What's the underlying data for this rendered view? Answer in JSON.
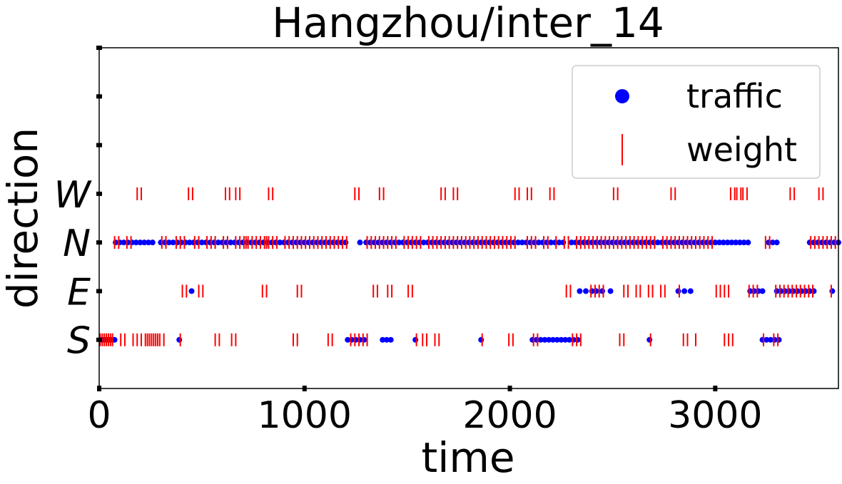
{
  "chart_data": {
    "type": "scatter",
    "title": "Hangzhou/inter_14",
    "xlabel": "time",
    "ylabel": "direction",
    "xlim": [
      0,
      3600
    ],
    "xticks": [
      "0",
      "1000",
      "2000",
      "3000"
    ],
    "xtick_values": [
      0,
      1000,
      2000,
      3000
    ],
    "ylim": [
      -1,
      6
    ],
    "yticks": [
      "S",
      "E",
      "N",
      "W",
      "",
      "",
      ""
    ],
    "ytick_values": [
      0,
      1,
      2,
      3,
      4,
      5,
      6
    ],
    "legend_position": "upper right",
    "colors": {
      "traffic": "#0000ff",
      "weight": "#ff0000"
    },
    "series": [
      {
        "name": "traffic",
        "marker": "dot",
        "points": {
          "S": [
            5,
            15,
            25,
            35,
            45,
            55,
            65,
            75,
            390,
            1210,
            1230,
            1250,
            1270,
            1290,
            1380,
            1400,
            1420,
            1540,
            1860,
            2110,
            2130,
            2150,
            2170,
            2190,
            2210,
            2230,
            2250,
            2270,
            2290,
            2310,
            2330,
            2680,
            3230,
            3250,
            3270,
            3290,
            3310
          ],
          "E": [
            450,
            2340,
            2370,
            2400,
            2420,
            2450,
            2490,
            2820,
            2850,
            2880,
            3170,
            3190,
            3210,
            3230,
            3300,
            3320,
            3340,
            3360,
            3380,
            3400,
            3420,
            3440,
            3460,
            3480,
            3570
          ],
          "N": [
            80,
            100,
            120,
            140,
            160,
            180,
            200,
            220,
            240,
            260,
            300,
            320,
            340,
            360,
            380,
            400,
            420,
            440,
            460,
            480,
            500,
            520,
            540,
            560,
            580,
            600,
            620,
            640,
            660,
            680,
            700,
            720,
            740,
            760,
            780,
            800,
            820,
            840,
            860,
            880,
            900,
            920,
            940,
            960,
            980,
            1000,
            1020,
            1040,
            1060,
            1080,
            1100,
            1120,
            1140,
            1160,
            1180,
            1200,
            1270,
            1300,
            1320,
            1340,
            1360,
            1380,
            1400,
            1420,
            1440,
            1460,
            1480,
            1500,
            1520,
            1540,
            1560,
            1580,
            1600,
            1620,
            1640,
            1660,
            1680,
            1700,
            1720,
            1740,
            1760,
            1780,
            1800,
            1820,
            1840,
            1860,
            1880,
            1900,
            1920,
            1940,
            1960,
            1980,
            2000,
            2020,
            2040,
            2060,
            2080,
            2100,
            2120,
            2140,
            2160,
            2180,
            2200,
            2220,
            2240,
            2260,
            2300,
            2320,
            2340,
            2360,
            2380,
            2400,
            2420,
            2440,
            2460,
            2480,
            2500,
            2520,
            2540,
            2560,
            2580,
            2600,
            2620,
            2640,
            2660,
            2680,
            2700,
            2720,
            2740,
            2760,
            2780,
            2800,
            2820,
            2840,
            2860,
            2880,
            2900,
            2920,
            2940,
            2960,
            2980,
            3000,
            3020,
            3040,
            3060,
            3080,
            3100,
            3120,
            3140,
            3160,
            3260,
            3280,
            3300,
            3460,
            3480,
            3500,
            3520,
            3540,
            3560,
            3580,
            3600
          ]
        }
      },
      {
        "name": "weight",
        "marker": "vline",
        "points": {
          "S": [
            5,
            15,
            25,
            35,
            45,
            55,
            65,
            105,
            125,
            165,
            185,
            205,
            225,
            235,
            245,
            255,
            265,
            275,
            285,
            295,
            315,
            395,
            565,
            585,
            645,
            665,
            945,
            965,
            1115,
            1135,
            1225,
            1245,
            1265,
            1285,
            1305,
            1545,
            1575,
            1595,
            1635,
            1655,
            1865,
            1995,
            2015,
            2115,
            2135,
            2305,
            2325,
            2345,
            2535,
            2555,
            2685,
            2845,
            2865,
            2905,
            3045,
            3065,
            3085,
            3235,
            3285,
            3305
          ],
          "E": [
            405,
            425,
            485,
            505,
            795,
            815,
            965,
            985,
            1335,
            1355,
            1405,
            1425,
            1505,
            1525,
            2275,
            2295,
            2395,
            2415,
            2435,
            2455,
            2555,
            2575,
            2615,
            2635,
            2675,
            2695,
            2735,
            2755,
            2825,
            3005,
            3025,
            3045,
            3065,
            3165,
            3185,
            3205,
            3295,
            3315,
            3335,
            3355,
            3375,
            3395,
            3415,
            3435,
            3455,
            3475,
            3565
          ],
          "N": [
            75,
            95,
            135,
            155,
            305,
            325,
            375,
            395,
            415,
            465,
            485,
            525,
            545,
            565,
            605,
            625,
            665,
            685,
            705,
            715,
            725,
            745,
            765,
            785,
            805,
            815,
            825,
            845,
            865,
            905,
            925,
            945,
            965,
            985,
            1005,
            1025,
            1045,
            1065,
            1085,
            1105,
            1125,
            1145,
            1165,
            1185,
            1205,
            1305,
            1325,
            1345,
            1365,
            1385,
            1405,
            1425,
            1445,
            1485,
            1505,
            1525,
            1545,
            1565,
            1605,
            1625,
            1645,
            1665,
            1685,
            1705,
            1725,
            1745,
            1765,
            1785,
            1805,
            1825,
            1845,
            1865,
            1885,
            1905,
            1925,
            1945,
            1965,
            1985,
            2005,
            2025,
            2085,
            2105,
            2125,
            2165,
            2185,
            2225,
            2265,
            2285,
            2325,
            2345,
            2365,
            2385,
            2405,
            2425,
            2445,
            2465,
            2485,
            2505,
            2525,
            2545,
            2565,
            2585,
            2605,
            2625,
            2645,
            2665,
            2685,
            2705,
            2745,
            2765,
            2785,
            2805,
            2825,
            2845,
            2865,
            2885,
            2905,
            2925,
            2945,
            2965,
            2985,
            3245,
            3265,
            3465,
            3485,
            3505,
            3525,
            3545,
            3565,
            3585
          ],
          "W": [
            185,
            205,
            435,
            455,
            615,
            635,
            665,
            685,
            825,
            845,
            1245,
            1265,
            1365,
            1385,
            1665,
            1685,
            1725,
            1745,
            2025,
            2045,
            2085,
            2105,
            2195,
            2215,
            2505,
            2525,
            2785,
            2805,
            3075,
            3095,
            3105,
            3125,
            3135,
            3155,
            3365,
            3385,
            3505,
            3525
          ]
        }
      }
    ]
  }
}
